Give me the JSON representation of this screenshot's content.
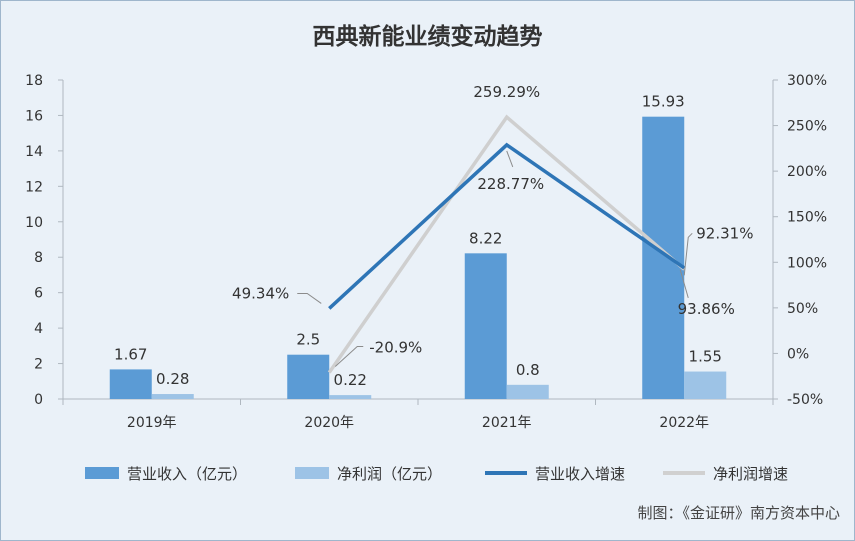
{
  "chart_data": {
    "type": "bar",
    "title": "西典新能业绩变动趋势",
    "categories": [
      "2019年",
      "2020年",
      "2021年",
      "2022年"
    ],
    "series": [
      {
        "name": "营业收入（亿元）",
        "kind": "bar",
        "axis": "left",
        "color": "#5b9bd5",
        "values": [
          1.67,
          2.5,
          8.22,
          15.93
        ],
        "labels": [
          "1.67",
          "2.5",
          "8.22",
          "15.93"
        ]
      },
      {
        "name": "净利润（亿元）",
        "kind": "bar",
        "axis": "left",
        "color": "#9dc3e6",
        "values": [
          0.28,
          0.22,
          0.8,
          1.55
        ],
        "labels": [
          "0.28",
          "0.22",
          "0.8",
          "1.55"
        ]
      },
      {
        "name": "营业收入增速",
        "kind": "line",
        "axis": "right",
        "color": "#2e75b6",
        "values": [
          null,
          49.34,
          228.77,
          93.86
        ],
        "labels": [
          "",
          "49.34%",
          "228.77%",
          "93.86%"
        ]
      },
      {
        "name": "净利润增速",
        "kind": "line",
        "axis": "right",
        "color": "#cfcfcf",
        "values": [
          null,
          -20.9,
          259.29,
          92.31
        ],
        "labels": [
          "",
          "-20.9%",
          "259.29%",
          "92.31%"
        ]
      }
    ],
    "y_left": {
      "min": 0,
      "max": 18,
      "ticks": [
        "0",
        "2",
        "4",
        "6",
        "8",
        "10",
        "12",
        "14",
        "16",
        "18"
      ]
    },
    "y_right": {
      "min": -50,
      "max": 300,
      "ticks": [
        "-50%",
        "0%",
        "50%",
        "100%",
        "150%",
        "200%",
        "250%",
        "300%"
      ]
    },
    "grid": false,
    "legend_position": "bottom"
  },
  "source": "制图：《金证研》南方资本中心"
}
